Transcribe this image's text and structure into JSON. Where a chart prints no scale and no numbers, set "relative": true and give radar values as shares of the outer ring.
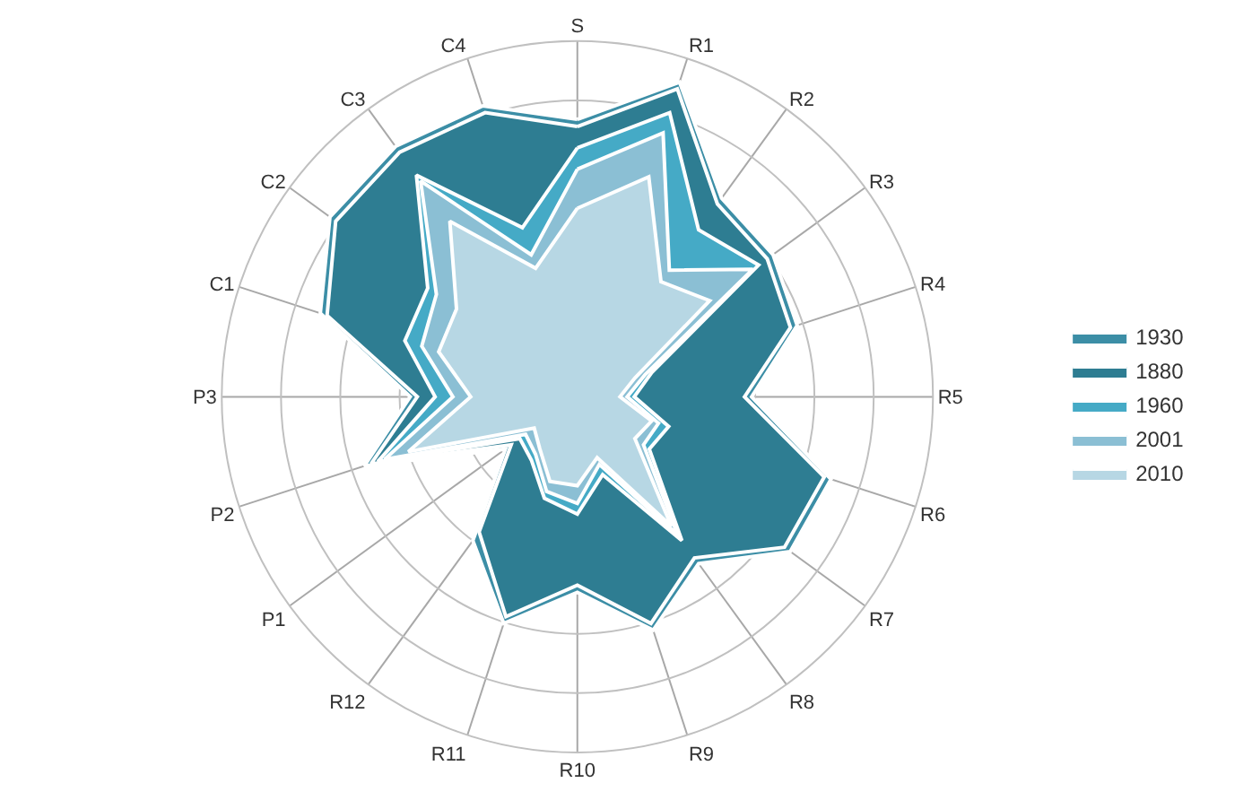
{
  "chart_data": {
    "type": "radar",
    "relative": true,
    "legend": "right",
    "grid": true,
    "categories": [
      "S",
      "R1",
      "R2",
      "R3",
      "R4",
      "R5",
      "R6",
      "R7",
      "R8",
      "R9",
      "R10",
      "R11",
      "R12",
      "P1",
      "P2",
      "P3",
      "C1",
      "C2",
      "C3",
      "C4"
    ],
    "series": [
      {
        "name": "1930",
        "color": "#3c8ea6",
        "values": [
          0.78,
          0.93,
          0.69,
          0.68,
          0.65,
          0.49,
          0.75,
          0.74,
          0.58,
          0.69,
          0.55,
          0.67,
          0.5,
          0.25,
          0.63,
          0.47,
          0.76,
          0.86,
          0.87,
          0.86
        ]
      },
      {
        "name": "1880",
        "color": "#2e7d92",
        "values": [
          0.76,
          0.91,
          0.67,
          0.66,
          0.63,
          0.47,
          0.73,
          0.72,
          0.56,
          0.67,
          0.53,
          0.65,
          0.47,
          0.23,
          0.61,
          0.45,
          0.74,
          0.84,
          0.85,
          0.84
        ]
      },
      {
        "name": "1960",
        "color": "#45aac6",
        "values": [
          0.7,
          0.84,
          0.58,
          0.63,
          0.22,
          0.16,
          0.27,
          0.25,
          0.5,
          0.23,
          0.33,
          0.3,
          0.22,
          0.2,
          0.59,
          0.4,
          0.51,
          0.52,
          0.77,
          0.5
        ]
      },
      {
        "name": "2001",
        "color": "#8bbfd4",
        "values": [
          0.64,
          0.78,
          0.44,
          0.61,
          0.2,
          0.14,
          0.24,
          0.23,
          0.48,
          0.2,
          0.3,
          0.28,
          0.2,
          0.18,
          0.57,
          0.35,
          0.46,
          0.49,
          0.75,
          0.42
        ]
      },
      {
        "name": "2010",
        "color": "#b7d7e4",
        "values": [
          0.53,
          0.65,
          0.4,
          0.46,
          0.17,
          0.12,
          0.22,
          0.2,
          0.45,
          0.18,
          0.25,
          0.25,
          0.18,
          0.15,
          0.5,
          0.3,
          0.41,
          0.42,
          0.61,
          0.38
        ]
      }
    ]
  }
}
